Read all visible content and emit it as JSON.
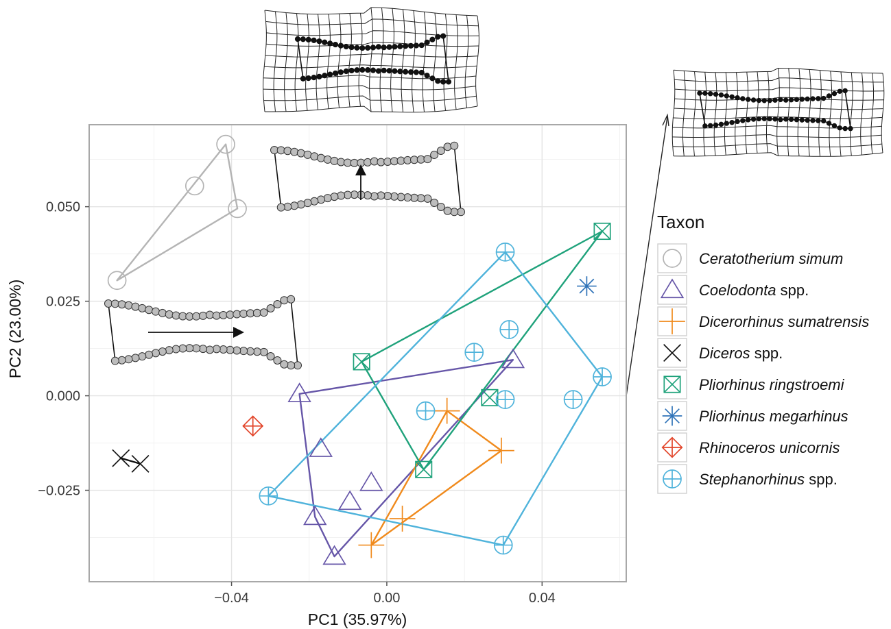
{
  "chart_data": {
    "type": "scatter",
    "title": "",
    "xlabel": "PC1 (35.97%)",
    "ylabel": "PC2 (23.00%)",
    "xlim": [
      -0.0765,
      0.0615
    ],
    "ylim": [
      -0.049,
      0.0715
    ],
    "x_ticks": [
      {
        "value": -0.04,
        "label": "−0.04"
      },
      {
        "value": 0.0,
        "label": "0.00"
      },
      {
        "value": 0.04,
        "label": "0.04"
      }
    ],
    "y_ticks": [
      {
        "value": 0.05,
        "label": "0.050"
      },
      {
        "value": 0.025,
        "label": "0.025"
      },
      {
        "value": 0.0,
        "label": "0.000"
      },
      {
        "value": -0.025,
        "label": "−0.025"
      }
    ],
    "grid": true,
    "legend": {
      "title": "Taxon",
      "position": "right"
    },
    "series": [
      {
        "name": "Ceratotherium simum",
        "label_italic": "Ceratotherium simum",
        "label_plain": "",
        "marker": "circle",
        "color": "#b4b4b4",
        "points": [
          [
            -0.0415,
            0.0665
          ],
          [
            -0.0495,
            0.0555
          ],
          [
            -0.0385,
            0.0495
          ],
          [
            -0.0695,
            0.0305
          ]
        ],
        "hull": [
          [
            -0.0695,
            0.0305
          ],
          [
            -0.0415,
            0.0665
          ],
          [
            -0.0385,
            0.0495
          ]
        ]
      },
      {
        "name": "Coelodonta spp.",
        "label_italic": "Coelodonta",
        "label_plain": " spp.",
        "marker": "triangle",
        "color": "#6656a8",
        "points": [
          [
            -0.0225,
            0.0005
          ],
          [
            0.0325,
            0.0095
          ],
          [
            -0.017,
            -0.014
          ],
          [
            -0.004,
            -0.023
          ],
          [
            -0.0095,
            -0.028
          ],
          [
            -0.0185,
            -0.032
          ],
          [
            -0.0135,
            -0.0425
          ]
        ],
        "hull": [
          [
            -0.0225,
            0.0005
          ],
          [
            0.0325,
            0.0095
          ],
          [
            -0.0135,
            -0.0425
          ],
          [
            -0.0185,
            -0.032
          ]
        ]
      },
      {
        "name": "Dicerorhinus sumatrensis",
        "label_italic": "Dicerorhinus sumatrensis",
        "label_plain": "",
        "marker": "plus",
        "color": "#f08a1c",
        "points": [
          [
            0.0155,
            -0.004
          ],
          [
            0.0295,
            -0.0145
          ],
          [
            0.004,
            -0.0325
          ],
          [
            -0.004,
            -0.0395
          ]
        ],
        "hull": [
          [
            0.0155,
            -0.004
          ],
          [
            0.0295,
            -0.0145
          ],
          [
            -0.004,
            -0.0395
          ]
        ]
      },
      {
        "name": "Diceros spp.",
        "label_italic": "Diceros",
        "label_plain": " spp.",
        "marker": "cross",
        "color": "#111111",
        "points": [
          [
            -0.0685,
            -0.0165
          ],
          [
            -0.0635,
            -0.018
          ]
        ],
        "hull": [
          [
            -0.0685,
            -0.0165
          ],
          [
            -0.0635,
            -0.018
          ]
        ]
      },
      {
        "name": "Pliorhinus  ringstroemi",
        "label_italic": "Pliorhinus  ringstroemi",
        "label_plain": "",
        "marker": "boxx",
        "color": "#1fa27b",
        "points": [
          [
            0.0555,
            0.0435
          ],
          [
            -0.0065,
            0.009
          ],
          [
            0.0265,
            -0.0005
          ],
          [
            0.0095,
            -0.0195
          ]
        ],
        "hull": [
          [
            -0.0065,
            0.009
          ],
          [
            0.0555,
            0.0435
          ],
          [
            0.0095,
            -0.0195
          ]
        ]
      },
      {
        "name": "Pliorhinus megarhinus",
        "label_italic": "Pliorhinus megarhinus",
        "label_plain": "",
        "marker": "asterisk",
        "color": "#2f73b8",
        "points": [
          [
            0.0515,
            0.029
          ]
        ],
        "hull": []
      },
      {
        "name": "Rhinoceros unicornis",
        "label_italic": "Rhinoceros unicornis",
        "label_plain": "",
        "marker": "diamondplus",
        "color": "#e2452a",
        "points": [
          [
            -0.0345,
            -0.008
          ]
        ],
        "hull": []
      },
      {
        "name": "Stephanorhinus spp.",
        "label_italic": "Stephanorhinus",
        "label_plain": " spp.",
        "marker": "circleplus",
        "color": "#4fb3db",
        "points": [
          [
            0.0305,
            0.038
          ],
          [
            0.0315,
            0.0175
          ],
          [
            0.0225,
            0.0115
          ],
          [
            0.0555,
            0.005
          ],
          [
            0.0305,
            -0.001
          ],
          [
            0.048,
            -0.001
          ],
          [
            0.01,
            -0.004
          ],
          [
            -0.0305,
            -0.0265
          ],
          [
            0.03,
            -0.0395
          ]
        ],
        "hull": [
          [
            0.0305,
            0.038
          ],
          [
            0.0555,
            0.005
          ],
          [
            0.03,
            -0.0395
          ],
          [
            -0.0305,
            -0.0265
          ]
        ]
      }
    ]
  }
}
